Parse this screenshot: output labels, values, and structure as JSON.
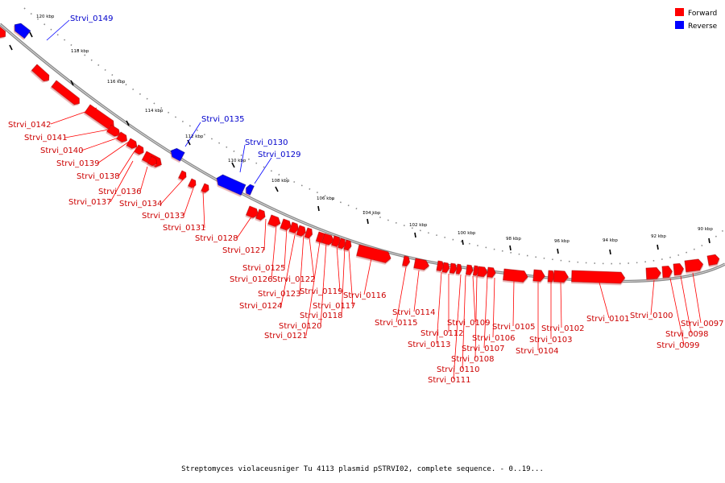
{
  "legend": {
    "forward": {
      "label": "Forward",
      "color": "#ff0000"
    },
    "reverse": {
      "label": "Reverse",
      "color": "#0000ff"
    }
  },
  "caption": "Streptomyces violaceusniger Tu 4113 plasmid pSTRVI02, complete sequence. - 0..19...",
  "ticks": [
    "120 kbp",
    "118 kbp",
    "116 kbp",
    "114 kbp",
    "112 kbp",
    "110 kbp",
    "108 kbp",
    "106 kbp",
    "104 kbp",
    "102 kbp",
    "100 kbp",
    "98 kbp",
    "96 kbp",
    "94 kbp",
    "92 kbp",
    "90 kbp"
  ],
  "genes": [
    {
      "name": "Strvi_0149",
      "strand": "reverse"
    },
    {
      "name": "Strvi_0142",
      "strand": "forward"
    },
    {
      "name": "Strvi_0141",
      "strand": "forward"
    },
    {
      "name": "Strvi_0140",
      "strand": "forward"
    },
    {
      "name": "Strvi_0139",
      "strand": "forward"
    },
    {
      "name": "Strvi_0138",
      "strand": "forward"
    },
    {
      "name": "Strvi_0137",
      "strand": "forward"
    },
    {
      "name": "Strvi_0136",
      "strand": "forward"
    },
    {
      "name": "Strvi_0135",
      "strand": "reverse"
    },
    {
      "name": "Strvi_0134",
      "strand": "forward"
    },
    {
      "name": "Strvi_0133",
      "strand": "forward"
    },
    {
      "name": "Strvi_0131",
      "strand": "forward"
    },
    {
      "name": "Strvi_0130",
      "strand": "reverse"
    },
    {
      "name": "Strvi_0129",
      "strand": "reverse"
    },
    {
      "name": "Strvi_0128",
      "strand": "forward"
    },
    {
      "name": "Strvi_0127",
      "strand": "forward"
    },
    {
      "name": "Strvi_0126",
      "strand": "forward"
    },
    {
      "name": "Strvi_0125",
      "strand": "forward"
    },
    {
      "name": "Strvi_0124",
      "strand": "forward"
    },
    {
      "name": "Strvi_0123",
      "strand": "forward"
    },
    {
      "name": "Strvi_0122",
      "strand": "forward"
    },
    {
      "name": "Strvi_0121",
      "strand": "forward"
    },
    {
      "name": "Strvi_0120",
      "strand": "forward"
    },
    {
      "name": "Strvi_0119",
      "strand": "forward"
    },
    {
      "name": "Strvi_0118",
      "strand": "forward"
    },
    {
      "name": "Strvi_0117",
      "strand": "forward"
    },
    {
      "name": "Strvi_0116",
      "strand": "forward"
    },
    {
      "name": "Strvi_0115",
      "strand": "forward"
    },
    {
      "name": "Strvi_0114",
      "strand": "forward"
    },
    {
      "name": "Strvi_0113",
      "strand": "forward"
    },
    {
      "name": "Strvi_0112",
      "strand": "forward"
    },
    {
      "name": "Strvi_0111",
      "strand": "forward"
    },
    {
      "name": "Strvi_0110",
      "strand": "forward"
    },
    {
      "name": "Strvi_0109",
      "strand": "forward"
    },
    {
      "name": "Strvi_0108",
      "strand": "forward"
    },
    {
      "name": "Strvi_0107",
      "strand": "forward"
    },
    {
      "name": "Strvi_0106",
      "strand": "forward"
    },
    {
      "name": "Strvi_0105",
      "strand": "forward"
    },
    {
      "name": "Strvi_0104",
      "strand": "forward"
    },
    {
      "name": "Strvi_0103",
      "strand": "forward"
    },
    {
      "name": "Strvi_0102",
      "strand": "forward"
    },
    {
      "name": "Strvi_0101",
      "strand": "forward"
    },
    {
      "name": "Strvi_0100",
      "strand": "forward"
    },
    {
      "name": "Strvi_0099",
      "strand": "forward"
    },
    {
      "name": "Strvi_0098",
      "strand": "forward"
    },
    {
      "name": "Strvi_0097",
      "strand": "forward"
    }
  ]
}
